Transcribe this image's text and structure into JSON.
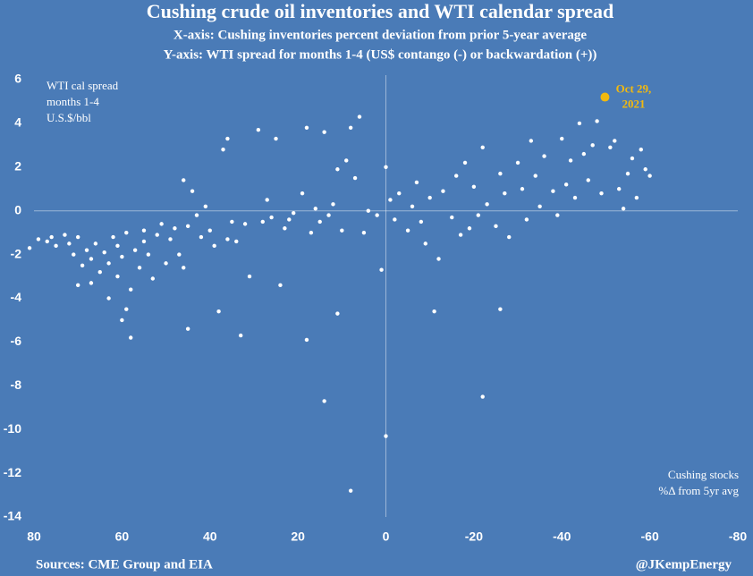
{
  "chart_data": {
    "type": "scatter",
    "title": "Cushing crude oil inventories and WTI calendar spread",
    "subtitle": [
      "X-axis: Cushing inventories percent deviation from prior 5-year average",
      "Y-axis: WTI spread for months 1-4 (US$ contango (-) or backwardation (+))"
    ],
    "y_label": [
      "WTI cal spread",
      "months 1-4",
      "U.S.$/bbl"
    ],
    "x_label": [
      "Cushing stocks",
      "%Δ from 5yr avg"
    ],
    "source": "Sources: CME Group and EIA",
    "credit": "@JKempEnergy",
    "xlim": [
      80,
      -80
    ],
    "ylim": [
      -14,
      6
    ],
    "xticks": [
      80,
      60,
      40,
      20,
      0,
      -20,
      -40,
      -60,
      -80
    ],
    "yticks": [
      6,
      4,
      2,
      0,
      -2,
      -4,
      -6,
      -8,
      -10,
      -12,
      -14
    ],
    "zero_lines": true,
    "series": [
      {
        "color": "#ffffff",
        "x": [
          81,
          79,
          77,
          76,
          75,
          73,
          72,
          71,
          70,
          70,
          69,
          68,
          67,
          67,
          66,
          65,
          64,
          63,
          63,
          62,
          61,
          61,
          60,
          60,
          59,
          59,
          58,
          58,
          57,
          56,
          55,
          55,
          54,
          53,
          52,
          51,
          50,
          49,
          48,
          47,
          46,
          46,
          45,
          45,
          44,
          43,
          42,
          41,
          40,
          39,
          38,
          37,
          36,
          36,
          35,
          34,
          33,
          32,
          31,
          29,
          28,
          27,
          26,
          25,
          24,
          23,
          22,
          21,
          19,
          18,
          18,
          17,
          16,
          15,
          14,
          14,
          13,
          12,
          11,
          11,
          10,
          9,
          8,
          8,
          7,
          6,
          5,
          4,
          2,
          1,
          0,
          0,
          -1,
          -2,
          -3,
          -5,
          -6,
          -7,
          -8,
          -9,
          -10,
          -11,
          -12,
          -13,
          -15,
          -16,
          -17,
          -18,
          -19,
          -20,
          -21,
          -22,
          -22,
          -23,
          -25,
          -26,
          -26,
          -27,
          -28,
          -30,
          -31,
          -32,
          -33,
          -34,
          -35,
          -36,
          -38,
          -39,
          -40,
          -41,
          -42,
          -43,
          -44,
          -45,
          -46,
          -47,
          -48,
          -49,
          -51,
          -52,
          -53,
          -54,
          -55,
          -56,
          -57,
          -58,
          -59,
          -60
        ],
        "values": [
          -1.7,
          -1.3,
          -1.4,
          -1.2,
          -1.6,
          -1.1,
          -1.5,
          -2.0,
          -1.2,
          -3.4,
          -2.5,
          -1.8,
          -3.3,
          -2.2,
          -1.5,
          -2.8,
          -1.9,
          -4.0,
          -2.4,
          -1.2,
          -3.0,
          -1.6,
          -5.0,
          -2.1,
          -4.5,
          -1.0,
          -5.8,
          -3.6,
          -1.8,
          -2.6,
          -0.9,
          -1.4,
          -2.0,
          -3.1,
          -1.1,
          -0.6,
          -2.4,
          -1.3,
          -0.8,
          -2.0,
          1.4,
          -2.6,
          -5.4,
          -0.7,
          0.9,
          -0.2,
          -1.2,
          0.2,
          -0.9,
          -1.6,
          -4.6,
          2.8,
          3.3,
          -1.3,
          -0.5,
          -1.4,
          -5.7,
          -0.6,
          -3.0,
          3.7,
          -0.5,
          0.5,
          -0.3,
          3.3,
          -3.4,
          -0.8,
          -0.4,
          -0.1,
          0.8,
          3.8,
          -5.9,
          -1.0,
          0.1,
          -0.5,
          3.6,
          -8.7,
          -0.2,
          0.3,
          -4.7,
          1.9,
          -0.9,
          2.3,
          3.8,
          -12.8,
          1.5,
          4.3,
          -1.0,
          0.0,
          -0.2,
          -2.7,
          -10.3,
          2.0,
          0.5,
          -0.4,
          0.8,
          -0.9,
          0.2,
          1.3,
          -0.5,
          -1.5,
          0.6,
          -4.6,
          -2.2,
          0.9,
          -0.3,
          1.6,
          -1.1,
          2.2,
          -0.8,
          1.1,
          -0.2,
          -8.5,
          2.9,
          0.3,
          -0.7,
          -4.5,
          1.7,
          0.8,
          -1.2,
          2.2,
          1.0,
          -0.4,
          3.2,
          1.6,
          0.2,
          2.5,
          0.9,
          -0.2,
          3.3,
          1.2,
          2.3,
          0.6,
          4.0,
          2.6,
          1.4,
          3.0,
          4.1,
          0.8,
          2.9,
          3.2,
          1.0,
          0.1,
          1.7,
          2.4,
          0.6,
          2.8,
          1.9,
          1.6
        ]
      },
      {
        "color": "#f2b90f",
        "x": [
          -49.8
        ],
        "values": [
          5.2
        ],
        "annotation": [
          "Oct 29,",
          "2021"
        ]
      }
    ]
  }
}
